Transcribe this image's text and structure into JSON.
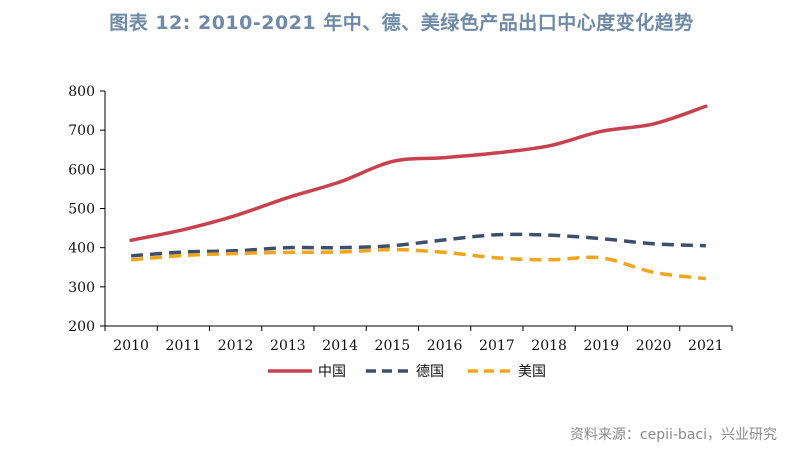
{
  "title": "图表 12: 2010-2021 年中、德、美绿色产品出口中心度变化趋势",
  "source": "资料来源：cepii-baci，兴业研究",
  "colors": {
    "china": "#c8414f",
    "germany": "#3e4f6e",
    "usa": "#f0a51c",
    "title": "#6f8aa6"
  },
  "chart_data": {
    "type": "line",
    "title": "图表 12: 2010-2021 年中、德、美绿色产品出口中心度变化趋势",
    "xlabel": "",
    "ylabel": "",
    "x": [
      "2010",
      "2011",
      "2012",
      "2013",
      "2014",
      "2015",
      "2016",
      "2017",
      "2018",
      "2019",
      "2020",
      "2021"
    ],
    "ylim": [
      200,
      800
    ],
    "yticks": [
      200,
      300,
      400,
      500,
      600,
      700,
      800
    ],
    "grid": false,
    "legend_position": "bottom",
    "series": [
      {
        "name": "中国",
        "style": "solid",
        "color": "#c8414f",
        "values": [
          419,
          446,
          482,
          528,
          568,
          620,
          630,
          642,
          660,
          697,
          716,
          761
        ]
      },
      {
        "name": "德国",
        "style": "dashed",
        "color": "#3e4f6e",
        "values": [
          379,
          389,
          392,
          400,
          400,
          405,
          420,
          433,
          432,
          423,
          410,
          405
        ]
      },
      {
        "name": "美国",
        "style": "dashed",
        "color": "#f0a51c",
        "values": [
          369,
          380,
          385,
          388,
          389,
          395,
          388,
          374,
          369,
          374,
          337,
          321
        ]
      }
    ]
  }
}
